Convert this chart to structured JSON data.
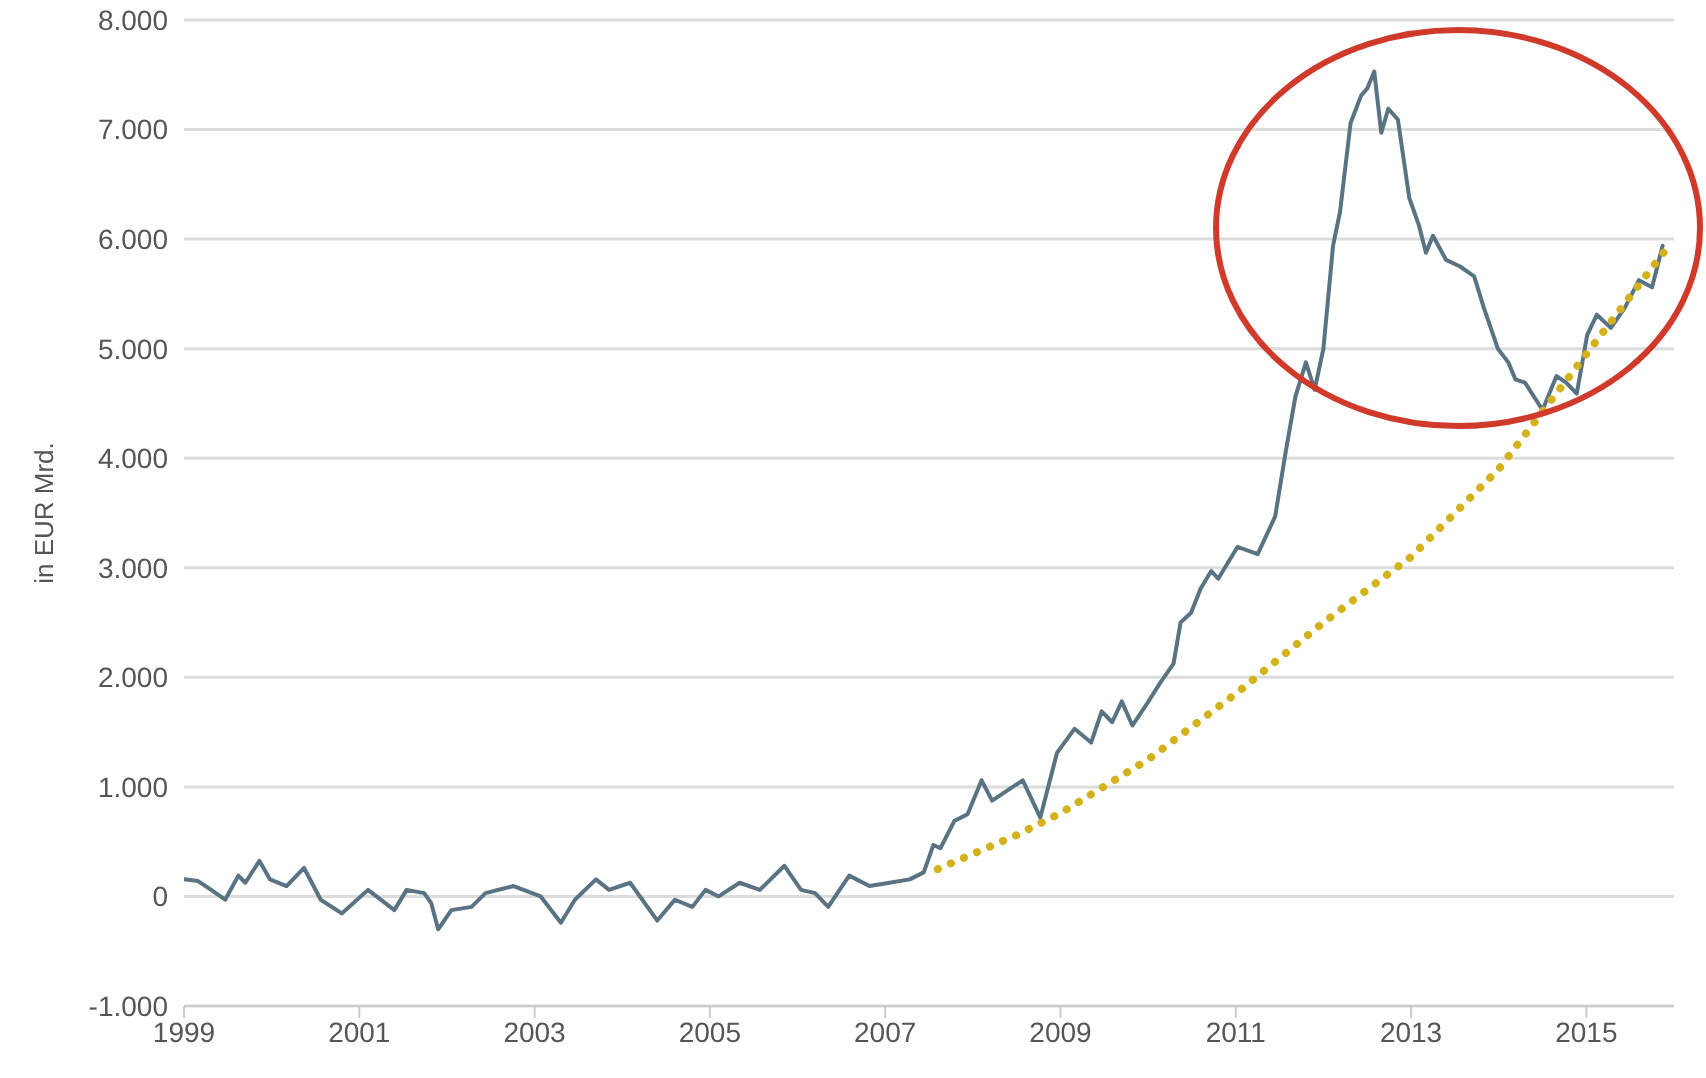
{
  "chart_data": {
    "type": "line",
    "ylabel": "in EUR Mrd.",
    "xlim": [
      1999,
      2016
    ],
    "xticks": [
      1999,
      2001,
      2003,
      2005,
      2007,
      2009,
      2011,
      2013,
      2015
    ],
    "ylim": [
      -1000,
      8000
    ],
    "yticks": [
      {
        "value": -1000,
        "label": "-1.000"
      },
      0,
      {
        "value": 1000,
        "label": "1.000"
      },
      {
        "value": 2000,
        "label": "2.000"
      },
      {
        "value": 3000,
        "label": "3.000"
      },
      {
        "value": 4000,
        "label": "4.000"
      },
      {
        "value": 5000,
        "label": "5.000"
      },
      {
        "value": 6000,
        "label": "6.000"
      },
      {
        "value": 7000,
        "label": "7.000"
      },
      {
        "value": 8000,
        "label": "8.000"
      }
    ],
    "grid": "y",
    "legend": false,
    "marker": "none",
    "series": [
      {
        "color": "#5a7383",
        "line_style": "solid",
        "x": [
          1999.0,
          1999.16,
          1999.31,
          1999.47,
          1999.62,
          1999.7,
          1999.86,
          1999.98,
          2000.17,
          2000.37,
          2000.56,
          2000.8,
          2001.1,
          2001.4,
          2001.54,
          2001.74,
          2001.82,
          2001.9,
          2002.05,
          2002.28,
          2002.44,
          2002.76,
          2003.07,
          2003.3,
          2003.46,
          2003.7,
          2003.85,
          2004.09,
          2004.4,
          2004.6,
          2004.8,
          2004.95,
          2005.1,
          2005.34,
          2005.57,
          2005.85,
          2006.04,
          2006.2,
          2006.35,
          2006.59,
          2006.82,
          2007.05,
          2007.28,
          2007.44,
          2007.55,
          2007.63,
          2007.79,
          2007.94,
          2008.1,
          2008.22,
          2008.57,
          2008.77,
          2008.96,
          2009.16,
          2009.35,
          2009.47,
          2009.59,
          2009.7,
          2009.82,
          2009.98,
          2010.13,
          2010.29,
          2010.37,
          2010.49,
          2010.6,
          2010.72,
          2010.8,
          2010.92,
          2011.02,
          2011.25,
          2011.45,
          2011.57,
          2011.68,
          2011.8,
          2011.9,
          2012.0,
          2012.11,
          2012.19,
          2012.31,
          2012.43,
          2012.5,
          2012.58,
          2012.66,
          2012.74,
          2012.85,
          2012.98,
          2013.09,
          2013.17,
          2013.25,
          2013.4,
          2013.56,
          2013.72,
          2013.83,
          2013.99,
          2014.11,
          2014.19,
          2014.3,
          2014.5,
          2014.66,
          2014.77,
          2014.89,
          2015.01,
          2015.12,
          2015.28,
          2015.44,
          2015.6,
          2015.75,
          2015.87
        ],
        "values": [
          156,
          140,
          60,
          -30,
          190,
          125,
          325,
          156,
          95,
          260,
          -30,
          -155,
          60,
          -125,
          60,
          30,
          -60,
          -300,
          -125,
          -95,
          30,
          95,
          0,
          -240,
          -30,
          156,
          60,
          125,
          -220,
          -30,
          -95,
          60,
          0,
          125,
          60,
          280,
          60,
          30,
          -95,
          190,
          95,
          125,
          156,
          220,
          470,
          440,
          690,
          750,
          1060,
          875,
          1060,
          720,
          1310,
          1530,
          1405,
          1690,
          1590,
          1780,
          1560,
          1750,
          1940,
          2125,
          2500,
          2590,
          2810,
          2970,
          2900,
          3060,
          3190,
          3125,
          3470,
          4060,
          4560,
          4875,
          4625,
          5000,
          5940,
          6250,
          7060,
          7310,
          7375,
          7530,
          6970,
          7190,
          7090,
          6375,
          6125,
          5875,
          6030,
          5810,
          5750,
          5660,
          5375,
          5000,
          4875,
          4720,
          4690,
          4440,
          4750,
          4690,
          4590,
          5125,
          5310,
          5190,
          5375,
          5625,
          5560,
          5940
        ]
      },
      {
        "color": "#d4b21c",
        "line_style": "dotted",
        "x": [
          2007.6,
          2008.5,
          2009,
          2010,
          2011,
          2012,
          2013,
          2014,
          2015,
          2015.95
        ],
        "values": [
          250,
          560,
          760,
          1250,
          1850,
          2500,
          3100,
          3900,
          4950,
          5950
        ]
      }
    ]
  }
}
